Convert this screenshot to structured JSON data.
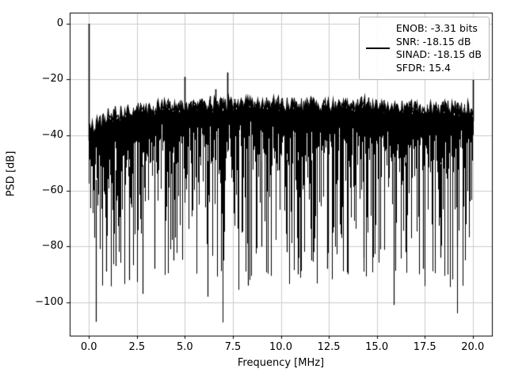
{
  "chart_data": {
    "type": "line",
    "title": "",
    "xlabel": "Frequency [MHz]",
    "ylabel": "PSD [dB]",
    "xlim": [
      -1,
      21
    ],
    "ylim": [
      -112,
      4
    ],
    "grid": true,
    "line_color": "#000000",
    "grid_color": "#cccccc",
    "xtick_values": [
      0.0,
      2.5,
      5.0,
      7.5,
      10.0,
      12.5,
      15.0,
      17.5,
      20.0
    ],
    "xtick_labels": [
      "0.0",
      "2.5",
      "5.0",
      "7.5",
      "10.0",
      "12.5",
      "15.0",
      "17.5",
      "20.0"
    ],
    "ytick_values": [
      0,
      -20,
      -40,
      -60,
      -80,
      -100
    ],
    "ytick_labels": [
      "0",
      "−20",
      "−40",
      "−60",
      "−80",
      "−100"
    ],
    "legend": {
      "position": "upper right",
      "line_color": "#000000",
      "entries": [
        "ENOB: -3.31 bits",
        "SNR: -18.15 dB",
        "SINAD: -18.15 dB",
        "SFDR: 15.4"
      ]
    },
    "series": {
      "name": "psd",
      "seed": 42,
      "noise_floor": {
        "top_db_mid": -29,
        "top_db_left_edge": -36,
        "typical_lower_db": -75,
        "min_db": -107
      },
      "spurs": [
        {
          "x": 0.0,
          "y": 0.0
        },
        {
          "x": 5.0,
          "y": -19.0
        },
        {
          "x": 6.3,
          "y": -26.0
        },
        {
          "x": 6.6,
          "y": -23.5
        },
        {
          "x": 7.2,
          "y": -17.5
        },
        {
          "x": 7.6,
          "y": -27.0
        },
        {
          "x": 8.6,
          "y": -28.0
        },
        {
          "x": 20.0,
          "y": -17.0
        }
      ],
      "deep_nulls": [
        [
          0.35,
          -107
        ],
        [
          0.9,
          -89
        ],
        [
          1.4,
          -87
        ],
        [
          2.1,
          -92
        ],
        [
          2.8,
          -97
        ],
        [
          3.4,
          -88
        ],
        [
          4.4,
          -85
        ],
        [
          6.2,
          -98
        ],
        [
          7.0,
          -85
        ],
        [
          8.3,
          -94
        ],
        [
          9.0,
          -80
        ],
        [
          10.3,
          -82
        ],
        [
          10.9,
          -90
        ],
        [
          11.6,
          -85
        ],
        [
          12.4,
          -88
        ],
        [
          13.5,
          -90
        ],
        [
          14.3,
          -84
        ],
        [
          15.9,
          -101
        ],
        [
          16.5,
          -82
        ],
        [
          17.4,
          -88
        ],
        [
          18.3,
          -84
        ],
        [
          19.2,
          -80
        ]
      ]
    }
  }
}
